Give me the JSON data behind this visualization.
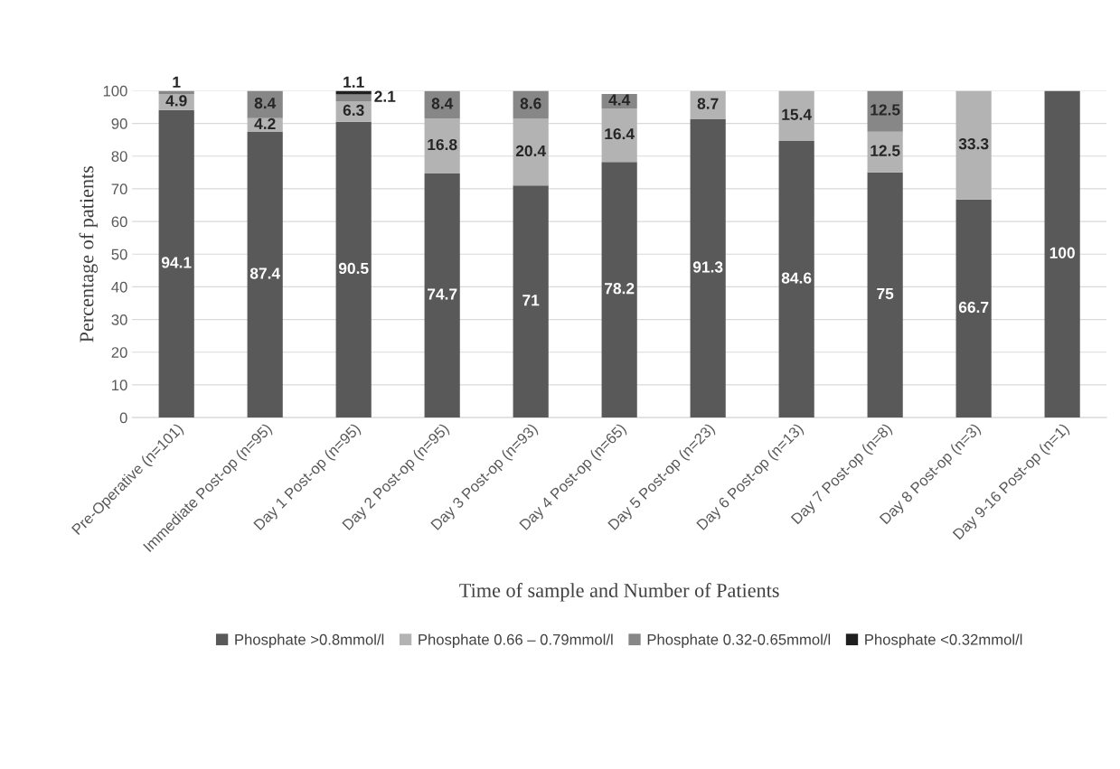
{
  "chart_data": {
    "type": "bar",
    "stacked": true,
    "xlabel": "Time of sample and Number of Patients",
    "ylabel": "Percentage of patients",
    "categories": [
      "Pre-Operative (n=101)",
      "Immediate Post-op (n=95)",
      "Day 1 Post-op (n=95)",
      "Day 2 Post-op (n=95)",
      "Day 3 Post-op (n=93)",
      "Day 4 Post-op (n=65)",
      "Day 5 Post-op (n=23)",
      "Day 6 Post-op (n=13)",
      "Day 7 Post-op (n=8)",
      "Day 8 Post-op (n=3)",
      "Day 9-16 Post-op (n=1)"
    ],
    "series": [
      {
        "name": "Phosphate >0.8mmol/l",
        "color": "#595959",
        "values": [
          94.1,
          87.4,
          90.5,
          74.7,
          71,
          78.2,
          91.3,
          84.6,
          75,
          66.7,
          100
        ]
      },
      {
        "name": "Phosphate 0.66 – 0.79mmol/l",
        "color": "#b3b3b3",
        "values": [
          4.9,
          4.2,
          6.3,
          16.8,
          20.4,
          16.4,
          8.7,
          15.4,
          12.5,
          33.3,
          null
        ]
      },
      {
        "name": "Phosphate 0.32-0.65mmol/l",
        "color": "#878787",
        "values": [
          1,
          8.4,
          2.1,
          8.4,
          8.6,
          4.4,
          null,
          null,
          12.5,
          null,
          null
        ]
      },
      {
        "name": "Phosphate <0.32mmol/l",
        "color": "#1f1f1f",
        "values": [
          null,
          null,
          1.1,
          null,
          null,
          null,
          null,
          null,
          null,
          null,
          null
        ]
      }
    ],
    "ylim": [
      0,
      100
    ],
    "yticks": [
      0,
      10,
      20,
      30,
      40,
      50,
      60,
      70,
      80,
      90,
      100
    ],
    "grid": "y",
    "legend": "bottom",
    "data_labels": true
  }
}
